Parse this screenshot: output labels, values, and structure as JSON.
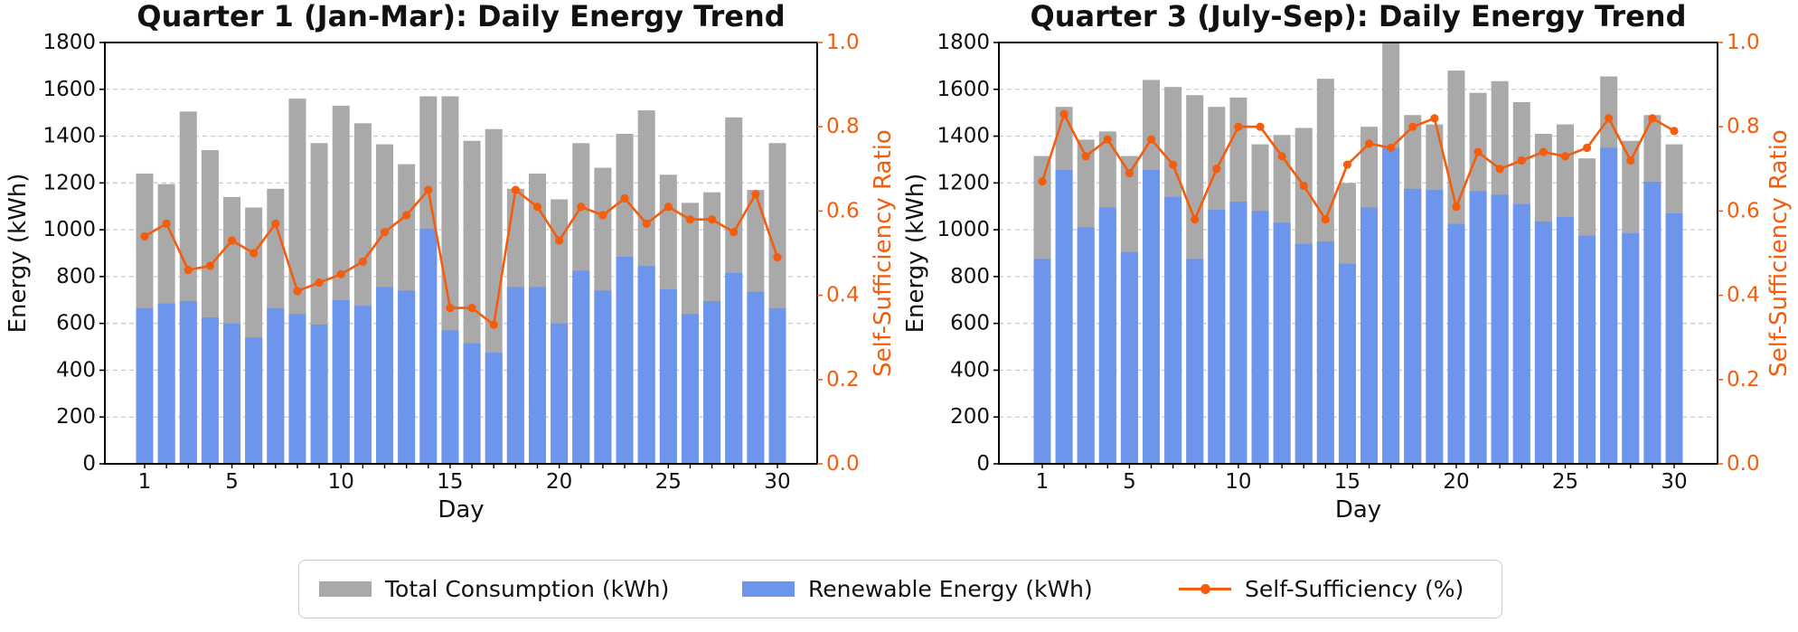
{
  "figure": {
    "background": "#ffffff",
    "colors": {
      "total_bar": "#a9a9a9",
      "renewable_bar": "#6d95ec",
      "ratio_line": "#f35d0d",
      "grid": "#cccccc",
      "spine": "#000000",
      "text": "#111111"
    }
  },
  "chart_data": [
    {
      "type": "bar+line",
      "title": "Quarter 1 (Jan-Mar): Daily Energy Trend",
      "xlabel": "Day",
      "ylabel_left": "Energy (kWh)",
      "ylabel_right": "Self-Sufficiency Ratio",
      "ylim_left": [
        0,
        1800
      ],
      "ylim_right": [
        0.0,
        1.0
      ],
      "y_ticks_left": [
        "0",
        "200",
        "400",
        "600",
        "800",
        "1000",
        "1200",
        "1400",
        "1600",
        "1800"
      ],
      "y_ticks_right": [
        "0.0",
        "0.2",
        "0.4",
        "0.6",
        "0.8",
        "1.0"
      ],
      "x_tick_labels": [
        1,
        5,
        10,
        15,
        20,
        25,
        30
      ],
      "grid": true,
      "x": [
        1,
        2,
        3,
        4,
        5,
        6,
        7,
        8,
        9,
        10,
        11,
        12,
        13,
        14,
        15,
        16,
        17,
        18,
        19,
        20,
        21,
        22,
        23,
        24,
        25,
        26,
        27,
        28,
        29,
        30
      ],
      "series": [
        {
          "name": "Total Consumption (kWh)",
          "type": "bar",
          "axis": "left",
          "color": "#a9a9a9",
          "values": [
            1240,
            1195,
            1505,
            1340,
            1140,
            1095,
            1175,
            1560,
            1370,
            1530,
            1455,
            1365,
            1280,
            1570,
            1570,
            1380,
            1430,
            1175,
            1240,
            1130,
            1370,
            1265,
            1410,
            1510,
            1235,
            1115,
            1160,
            1480,
            1170,
            1370
          ]
        },
        {
          "name": "Renewable Energy (kWh)",
          "type": "bar",
          "axis": "left",
          "color": "#6d95ec",
          "values": [
            665,
            685,
            695,
            625,
            600,
            540,
            665,
            640,
            595,
            700,
            675,
            755,
            740,
            1005,
            570,
            515,
            475,
            755,
            755,
            600,
            825,
            740,
            885,
            845,
            745,
            640,
            695,
            815,
            735,
            665
          ]
        },
        {
          "name": "Self-Sufficiency (%)",
          "type": "line",
          "axis": "right",
          "color": "#f35d0d",
          "values": [
            0.54,
            0.57,
            0.46,
            0.47,
            0.53,
            0.5,
            0.57,
            0.41,
            0.43,
            0.45,
            0.48,
            0.55,
            0.59,
            0.65,
            0.37,
            0.37,
            0.33,
            0.65,
            0.61,
            0.53,
            0.61,
            0.59,
            0.63,
            0.57,
            0.61,
            0.58,
            0.58,
            0.55,
            0.64,
            0.49
          ]
        }
      ]
    },
    {
      "type": "bar+line",
      "title": "Quarter 3 (July-Sep): Daily Energy Trend",
      "xlabel": "Day",
      "ylabel_left": "Energy (kWh)",
      "ylabel_right": "Self-Sufficiency Ratio",
      "ylim_left": [
        0,
        1800
      ],
      "ylim_right": [
        0.0,
        1.0
      ],
      "y_ticks_left": [
        "0",
        "200",
        "400",
        "600",
        "800",
        "1000",
        "1200",
        "1400",
        "1600",
        "1800"
      ],
      "y_ticks_right": [
        "0.0",
        "0.2",
        "0.4",
        "0.6",
        "0.8",
        "1.0"
      ],
      "x_tick_labels": [
        1,
        5,
        10,
        15,
        20,
        25,
        30
      ],
      "grid": true,
      "x": [
        1,
        2,
        3,
        4,
        5,
        6,
        7,
        8,
        9,
        10,
        11,
        12,
        13,
        14,
        15,
        16,
        17,
        18,
        19,
        20,
        21,
        22,
        23,
        24,
        25,
        26,
        27,
        28,
        29,
        30
      ],
      "series": [
        {
          "name": "Total Consumption (kWh)",
          "type": "bar",
          "axis": "left",
          "color": "#a9a9a9",
          "values": [
            1315,
            1525,
            1385,
            1420,
            1315,
            1640,
            1610,
            1575,
            1525,
            1565,
            1365,
            1405,
            1435,
            1645,
            1200,
            1440,
            1800,
            1490,
            1450,
            1680,
            1585,
            1635,
            1545,
            1410,
            1450,
            1305,
            1655,
            1380,
            1490,
            1365
          ]
        },
        {
          "name": "Renewable Energy (kWh)",
          "type": "bar",
          "axis": "left",
          "color": "#6d95ec",
          "values": [
            875,
            1255,
            1010,
            1095,
            905,
            1255,
            1140,
            875,
            1085,
            1120,
            1080,
            1030,
            940,
            950,
            855,
            1095,
            1350,
            1175,
            1170,
            1025,
            1165,
            1150,
            1110,
            1035,
            1055,
            975,
            1350,
            985,
            1205,
            1070
          ]
        },
        {
          "name": "Self-Sufficiency (%)",
          "type": "line",
          "axis": "right",
          "color": "#f35d0d",
          "values": [
            0.67,
            0.83,
            0.73,
            0.77,
            0.69,
            0.77,
            0.71,
            0.58,
            0.7,
            0.8,
            0.8,
            0.73,
            0.66,
            0.58,
            0.71,
            0.76,
            0.75,
            0.8,
            0.82,
            0.61,
            0.74,
            0.7,
            0.72,
            0.74,
            0.73,
            0.75,
            0.82,
            0.72,
            0.82,
            0.79
          ]
        }
      ]
    }
  ],
  "legend": {
    "position": "bottom-center",
    "items": [
      {
        "label": "Total Consumption (kWh)",
        "kind": "swatch",
        "color": "#a9a9a9"
      },
      {
        "label": "Renewable Energy (kWh)",
        "kind": "swatch",
        "color": "#6d95ec"
      },
      {
        "label": "Self-Sufficiency (%)",
        "kind": "line-marker",
        "color": "#f35d0d"
      }
    ]
  }
}
